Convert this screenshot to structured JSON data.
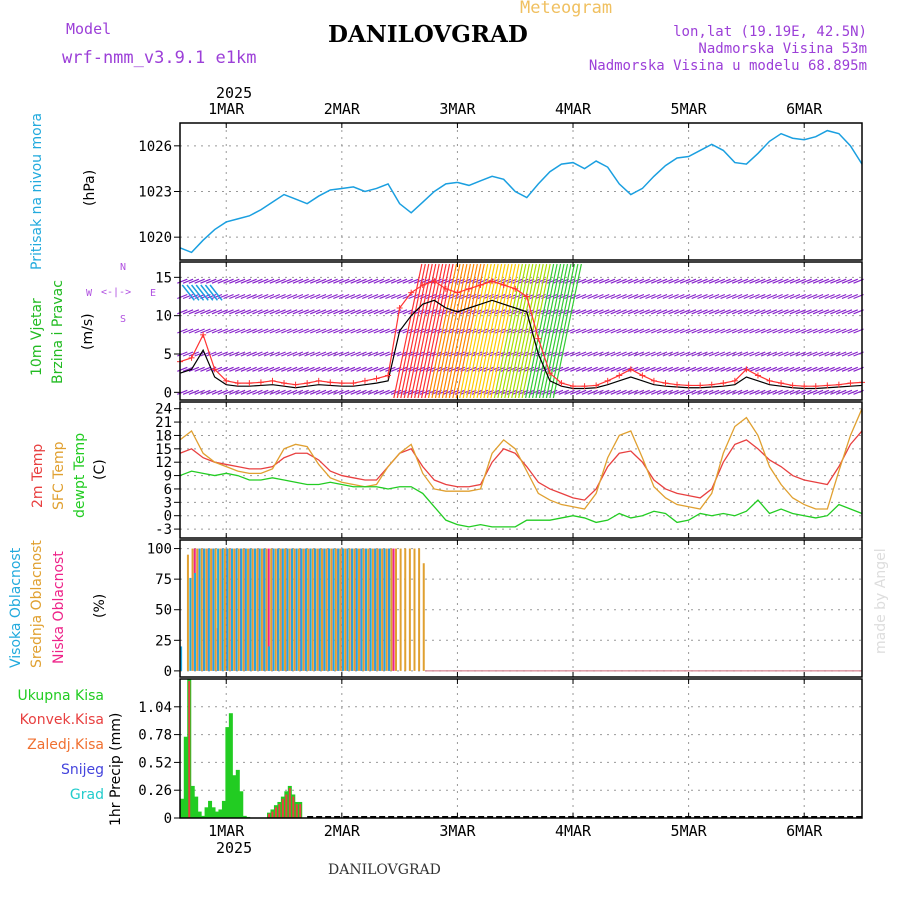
{
  "header": {
    "model_label": "Model",
    "model_name": "wrf-nmm_v3.9.1 e1km",
    "station": "DANILOVGRAD",
    "meteogram": "Meteogram",
    "lonlat": "lon,lat (19.19E, 42.5N)",
    "altitude": "Nadmorska Visina 53m",
    "model_altitude": "Nadmorska Visina u modelu 68.895m",
    "footer_station": "DANILOVGRAD",
    "watermark": "made by Angel",
    "year_top": "2025",
    "year_bottom": "2025"
  },
  "colors": {
    "pressure": "#1a9fe0",
    "wind_label": "#22bb22",
    "wind_speed": "#000000",
    "wind_gust": "#ff3333",
    "wind_barb": "#8822cc",
    "t2m": "#e84040",
    "tsfc": "#e0a030",
    "dewpt": "#22cc22",
    "cloud_high": "#22aadd",
    "cloud_mid": "#e0a030",
    "cloud_low": "#ee2288",
    "precip_total": "#22cc22",
    "precip_conv": "#e84040",
    "precip_frz": "#f07030",
    "precip_snow": "#4444dd",
    "precip_hail": "#22cccc"
  },
  "chart_data": [
    {
      "id": "pressure",
      "type": "line",
      "ylabel_title": "Pritisak na nivou mora",
      "ylabel_unit": "(hPa)",
      "ylim": [
        1018.5,
        1027.5
      ],
      "yticks": [
        1020,
        1023,
        1026
      ],
      "xlim": [
        0.6,
        6.5
      ],
      "x_tick_labels": [
        "1MAR",
        "2MAR",
        "3MAR",
        "4MAR",
        "5MAR",
        "6MAR"
      ],
      "x": [
        0.6,
        0.7,
        0.8,
        0.9,
        1.0,
        1.1,
        1.2,
        1.3,
        1.4,
        1.5,
        1.6,
        1.7,
        1.8,
        1.9,
        2.0,
        2.1,
        2.2,
        2.3,
        2.4,
        2.5,
        2.6,
        2.7,
        2.8,
        2.9,
        3.0,
        3.1,
        3.2,
        3.3,
        3.4,
        3.5,
        3.6,
        3.7,
        3.8,
        3.9,
        4.0,
        4.1,
        4.2,
        4.3,
        4.4,
        4.5,
        4.6,
        4.7,
        4.8,
        4.9,
        5.0,
        5.1,
        5.2,
        5.3,
        5.4,
        5.5,
        5.6,
        5.7,
        5.8,
        5.9,
        6.0,
        6.1,
        6.2,
        6.3,
        6.4,
        6.5
      ],
      "series": [
        {
          "values": [
            1019.3,
            1019.0,
            1019.8,
            1020.5,
            1021.0,
            1021.2,
            1021.4,
            1021.8,
            1022.3,
            1022.8,
            1022.5,
            1022.2,
            1022.7,
            1023.1,
            1023.2,
            1023.3,
            1023.0,
            1023.2,
            1023.5,
            1022.2,
            1021.6,
            1022.3,
            1023.0,
            1023.5,
            1023.6,
            1023.4,
            1023.7,
            1024.0,
            1023.8,
            1023.0,
            1022.6,
            1023.5,
            1024.3,
            1024.8,
            1024.9,
            1024.5,
            1025.0,
            1024.6,
            1023.5,
            1022.8,
            1023.2,
            1024.0,
            1024.7,
            1025.2,
            1025.3,
            1025.7,
            1026.1,
            1025.7,
            1024.9,
            1024.8,
            1025.5,
            1026.3,
            1026.8,
            1026.5,
            1026.4,
            1026.6,
            1027.0,
            1026.8,
            1026.0,
            1024.8
          ]
        }
      ]
    },
    {
      "id": "wind",
      "type": "line",
      "ylabel_title": "10m Vjetar",
      "ylabel_title2": "Brzina i Pravac",
      "ylabel_unit": "(m/s)",
      "compass": [
        "N",
        "W",
        "E",
        "S",
        "<-|->",
        "^",
        "v"
      ],
      "ylim": [
        -1,
        17
      ],
      "yticks": [
        0,
        5,
        10,
        15
      ],
      "xlim": [
        0.6,
        6.5
      ],
      "x": [
        0.6,
        0.7,
        0.8,
        0.9,
        1.0,
        1.1,
        1.2,
        1.3,
        1.4,
        1.5,
        1.6,
        1.7,
        1.8,
        1.9,
        2.0,
        2.1,
        2.2,
        2.3,
        2.4,
        2.5,
        2.6,
        2.7,
        2.8,
        2.9,
        3.0,
        3.1,
        3.2,
        3.3,
        3.4,
        3.5,
        3.6,
        3.7,
        3.8,
        3.9,
        4.0,
        4.1,
        4.2,
        4.3,
        4.4,
        4.5,
        4.6,
        4.7,
        4.8,
        4.9,
        5.0,
        5.1,
        5.2,
        5.3,
        5.4,
        5.5,
        5.6,
        5.7,
        5.8,
        5.9,
        6.0,
        6.1,
        6.2,
        6.3,
        6.4,
        6.5
      ],
      "series": [
        {
          "values": [
            2.5,
            3.0,
            5.5,
            2.0,
            1.0,
            0.8,
            0.8,
            0.9,
            1.0,
            0.8,
            0.6,
            0.8,
            1.0,
            0.9,
            0.8,
            0.8,
            1.0,
            1.2,
            1.5,
            8.0,
            10.0,
            11.5,
            12.0,
            11.0,
            10.5,
            11.0,
            11.5,
            12.0,
            11.5,
            11.0,
            10.5,
            5.0,
            1.5,
            0.8,
            0.5,
            0.5,
            0.6,
            1.0,
            1.5,
            2.0,
            1.5,
            1.0,
            0.8,
            0.7,
            0.6,
            0.6,
            0.7,
            0.8,
            1.0,
            2.0,
            1.5,
            1.0,
            0.8,
            0.6,
            0.5,
            0.5,
            0.6,
            0.7,
            0.8,
            0.9
          ]
        },
        {
          "values": [
            4.0,
            4.5,
            7.5,
            3.0,
            1.5,
            1.2,
            1.2,
            1.3,
            1.5,
            1.2,
            1.0,
            1.2,
            1.5,
            1.3,
            1.2,
            1.2,
            1.5,
            1.8,
            2.2,
            11.0,
            13.0,
            14.0,
            14.5,
            13.5,
            13.0,
            13.5,
            14.0,
            14.5,
            14.0,
            13.5,
            12.5,
            7.0,
            2.5,
            1.2,
            0.8,
            0.8,
            0.9,
            1.5,
            2.2,
            3.0,
            2.2,
            1.5,
            1.2,
            1.0,
            0.9,
            0.9,
            1.0,
            1.2,
            1.5,
            3.0,
            2.2,
            1.5,
            1.2,
            0.9,
            0.8,
            0.8,
            0.9,
            1.0,
            1.2,
            1.3
          ]
        }
      ]
    },
    {
      "id": "temperature",
      "type": "line",
      "ylabel_title": "2m Temp",
      "ylabel_title2": "SFC Temp",
      "ylabel_title3": "dewpt Temp",
      "ylabel_unit": "(C)",
      "ylim": [
        -5,
        25.5
      ],
      "yticks": [
        -3,
        0,
        3,
        6,
        9,
        12,
        15,
        18,
        21,
        24
      ],
      "xlim": [
        0.6,
        6.5
      ],
      "x": [
        0.6,
        0.7,
        0.8,
        0.9,
        1.0,
        1.1,
        1.2,
        1.3,
        1.4,
        1.5,
        1.6,
        1.7,
        1.8,
        1.9,
        2.0,
        2.1,
        2.2,
        2.3,
        2.4,
        2.5,
        2.6,
        2.7,
        2.8,
        2.9,
        3.0,
        3.1,
        3.2,
        3.3,
        3.4,
        3.5,
        3.6,
        3.7,
        3.8,
        3.9,
        4.0,
        4.1,
        4.2,
        4.3,
        4.4,
        4.5,
        4.6,
        4.7,
        4.8,
        4.9,
        5.0,
        5.1,
        5.2,
        5.3,
        5.4,
        5.5,
        5.6,
        5.7,
        5.8,
        5.9,
        6.0,
        6.1,
        6.2,
        6.3,
        6.4,
        6.5
      ],
      "series": [
        {
          "values": [
            14.0,
            15.0,
            13.0,
            12.0,
            11.5,
            11.0,
            10.5,
            10.5,
            11.0,
            13.0,
            14.0,
            14.0,
            12.5,
            10.0,
            9.0,
            8.5,
            8.0,
            8.0,
            11.0,
            14.0,
            15.0,
            11.0,
            8.0,
            7.0,
            6.5,
            6.5,
            7.0,
            12.0,
            15.0,
            14.0,
            11.0,
            7.5,
            6.0,
            5.0,
            4.0,
            3.5,
            6.0,
            11.0,
            14.0,
            14.5,
            12.0,
            8.0,
            6.0,
            5.0,
            4.5,
            4.0,
            6.0,
            12.0,
            16.0,
            17.0,
            15.0,
            12.5,
            11.0,
            9.0,
            8.0,
            7.5,
            7.0,
            11.0,
            16.0,
            19.0
          ]
        },
        {
          "values": [
            17.0,
            19.0,
            14.0,
            12.0,
            11.0,
            10.0,
            9.5,
            9.5,
            10.5,
            15.0,
            16.0,
            15.5,
            11.5,
            8.5,
            7.5,
            7.0,
            6.5,
            7.0,
            11.0,
            14.0,
            16.0,
            9.5,
            6.0,
            5.5,
            5.5,
            5.5,
            6.0,
            14.0,
            17.0,
            15.0,
            10.0,
            5.0,
            3.5,
            2.5,
            2.0,
            1.5,
            5.0,
            13.0,
            18.0,
            19.0,
            13.0,
            6.5,
            4.0,
            2.5,
            2.0,
            1.5,
            5.0,
            14.0,
            20.0,
            22.0,
            18.0,
            11.0,
            7.0,
            4.0,
            2.5,
            1.5,
            1.5,
            10.0,
            18.0,
            24.0
          ]
        },
        {
          "values": [
            9.0,
            10.0,
            9.5,
            9.0,
            9.5,
            9.0,
            8.0,
            8.0,
            8.5,
            8.0,
            7.5,
            7.0,
            7.0,
            7.5,
            7.0,
            6.5,
            6.5,
            6.5,
            6.0,
            6.5,
            6.5,
            5.0,
            2.0,
            -1.0,
            -2.0,
            -2.5,
            -2.0,
            -2.5,
            -2.5,
            -2.5,
            -1.0,
            -1.0,
            -1.0,
            -0.5,
            0.0,
            -0.5,
            -1.5,
            -1.0,
            0.5,
            -0.5,
            0.0,
            1.0,
            0.5,
            -1.5,
            -1.0,
            0.5,
            0.0,
            0.5,
            0.0,
            1.0,
            3.5,
            0.5,
            1.5,
            0.5,
            0.0,
            -0.5,
            0.0,
            2.5,
            1.5,
            0.5
          ]
        }
      ]
    },
    {
      "id": "clouds",
      "type": "bar",
      "ylabel_title": "Visoka Oblacnost",
      "ylabel_title2": "Srednja Oblacnost",
      "ylabel_title3": "Niska Oblacnost",
      "ylabel_unit": "(%)",
      "ylim": [
        -5,
        107
      ],
      "yticks": [
        0,
        25,
        50,
        75,
        100
      ],
      "xlim": [
        0.6,
        6.5
      ],
      "x": [
        0.62,
        0.66,
        0.7,
        0.74,
        0.78,
        0.82,
        0.86,
        0.9,
        0.94,
        0.98,
        1.02,
        1.06,
        1.1,
        1.14,
        1.18,
        1.22,
        1.26,
        1.3,
        1.34,
        1.38,
        1.42,
        1.46,
        1.5,
        1.54,
        1.58,
        1.62,
        1.66,
        1.7,
        1.74,
        1.78,
        1.82,
        1.86,
        1.9,
        1.94,
        1.98,
        2.02,
        2.06,
        2.1,
        2.14,
        2.18,
        2.22,
        2.26,
        2.3,
        2.34,
        2.38,
        2.42,
        2.46,
        2.5,
        2.54,
        2.58,
        2.62,
        2.66,
        2.7
      ],
      "series": [
        {
          "values": [
            20,
            0,
            76,
            80,
            100,
            100,
            100,
            100,
            100,
            100,
            100,
            100,
            100,
            100,
            100,
            100,
            100,
            100,
            100,
            20,
            100,
            100,
            100,
            100,
            100,
            100,
            100,
            100,
            100,
            100,
            100,
            100,
            100,
            100,
            100,
            100,
            100,
            100,
            100,
            100,
            100,
            100,
            100,
            100,
            100,
            100,
            0,
            0,
            0,
            0,
            0,
            0,
            0
          ]
        },
        {
          "values": [
            0,
            95,
            100,
            100,
            100,
            100,
            100,
            100,
            100,
            100,
            100,
            100,
            100,
            100,
            100,
            100,
            100,
            100,
            100,
            100,
            100,
            100,
            100,
            100,
            100,
            100,
            100,
            100,
            100,
            100,
            100,
            100,
            100,
            100,
            100,
            100,
            100,
            100,
            100,
            100,
            100,
            100,
            100,
            100,
            100,
            100,
            100,
            100,
            100,
            100,
            100,
            100,
            88
          ]
        },
        {
          "values": [
            0,
            0,
            100,
            100,
            100,
            100,
            100,
            35,
            100,
            100,
            100,
            100,
            100,
            100,
            100,
            100,
            100,
            100,
            100,
            100,
            100,
            100,
            100,
            100,
            100,
            100,
            100,
            100,
            100,
            100,
            100,
            100,
            100,
            100,
            100,
            100,
            100,
            100,
            100,
            100,
            100,
            100,
            100,
            100,
            100,
            100,
            0,
            0,
            0,
            0,
            0,
            0,
            0
          ]
        }
      ]
    },
    {
      "id": "precip",
      "type": "bar",
      "legend": [
        "Ukupna Kisa",
        "Konvek.Kisa",
        "Zaledj.Kisa",
        "Snijeg",
        "Grad"
      ],
      "ylabel_unit": "1hr Precip (mm)",
      "ylim": [
        0,
        1.3
      ],
      "yticks": [
        0,
        0.26,
        0.52,
        0.78,
        1.04
      ],
      "xlim": [
        0.6,
        6.5
      ],
      "x": [
        0.62,
        0.65,
        0.68,
        0.71,
        0.74,
        0.77,
        0.8,
        0.83,
        0.86,
        0.89,
        0.92,
        0.95,
        0.98,
        1.01,
        1.04,
        1.07,
        1.1,
        1.13,
        1.16,
        1.19,
        1.22,
        1.25,
        1.28,
        1.31,
        1.34,
        1.37,
        1.4,
        1.43,
        1.46,
        1.49,
        1.52,
        1.55,
        1.58,
        1.61,
        1.64,
        1.67
      ],
      "series": [
        {
          "values": [
            0.18,
            0.76,
            1.3,
            0.3,
            0.2,
            0.06,
            0.02,
            0.1,
            0.16,
            0.1,
            0.06,
            0.08,
            0.16,
            0.85,
            0.98,
            0.4,
            0.45,
            0.25,
            0.02,
            0.01,
            0.0,
            0.0,
            0.0,
            0.0,
            0.0,
            0.05,
            0.08,
            0.12,
            0.15,
            0.2,
            0.25,
            0.3,
            0.22,
            0.15,
            0.15,
            0.0
          ]
        },
        {
          "values": [
            0.0,
            0.0,
            1.28,
            0.0,
            0.0,
            0.0,
            0.0,
            0.0,
            0.0,
            0.0,
            0.0,
            0.0,
            0.0,
            0.0,
            0.0,
            0.0,
            0.0,
            0.0,
            0.0,
            0.0,
            0.0,
            0.0,
            0.0,
            0.0,
            0.0,
            0.04,
            0.06,
            0.1,
            0.13,
            0.18,
            0.22,
            0.28,
            0.2,
            0.13,
            0.13,
            0.0
          ]
        }
      ]
    }
  ]
}
